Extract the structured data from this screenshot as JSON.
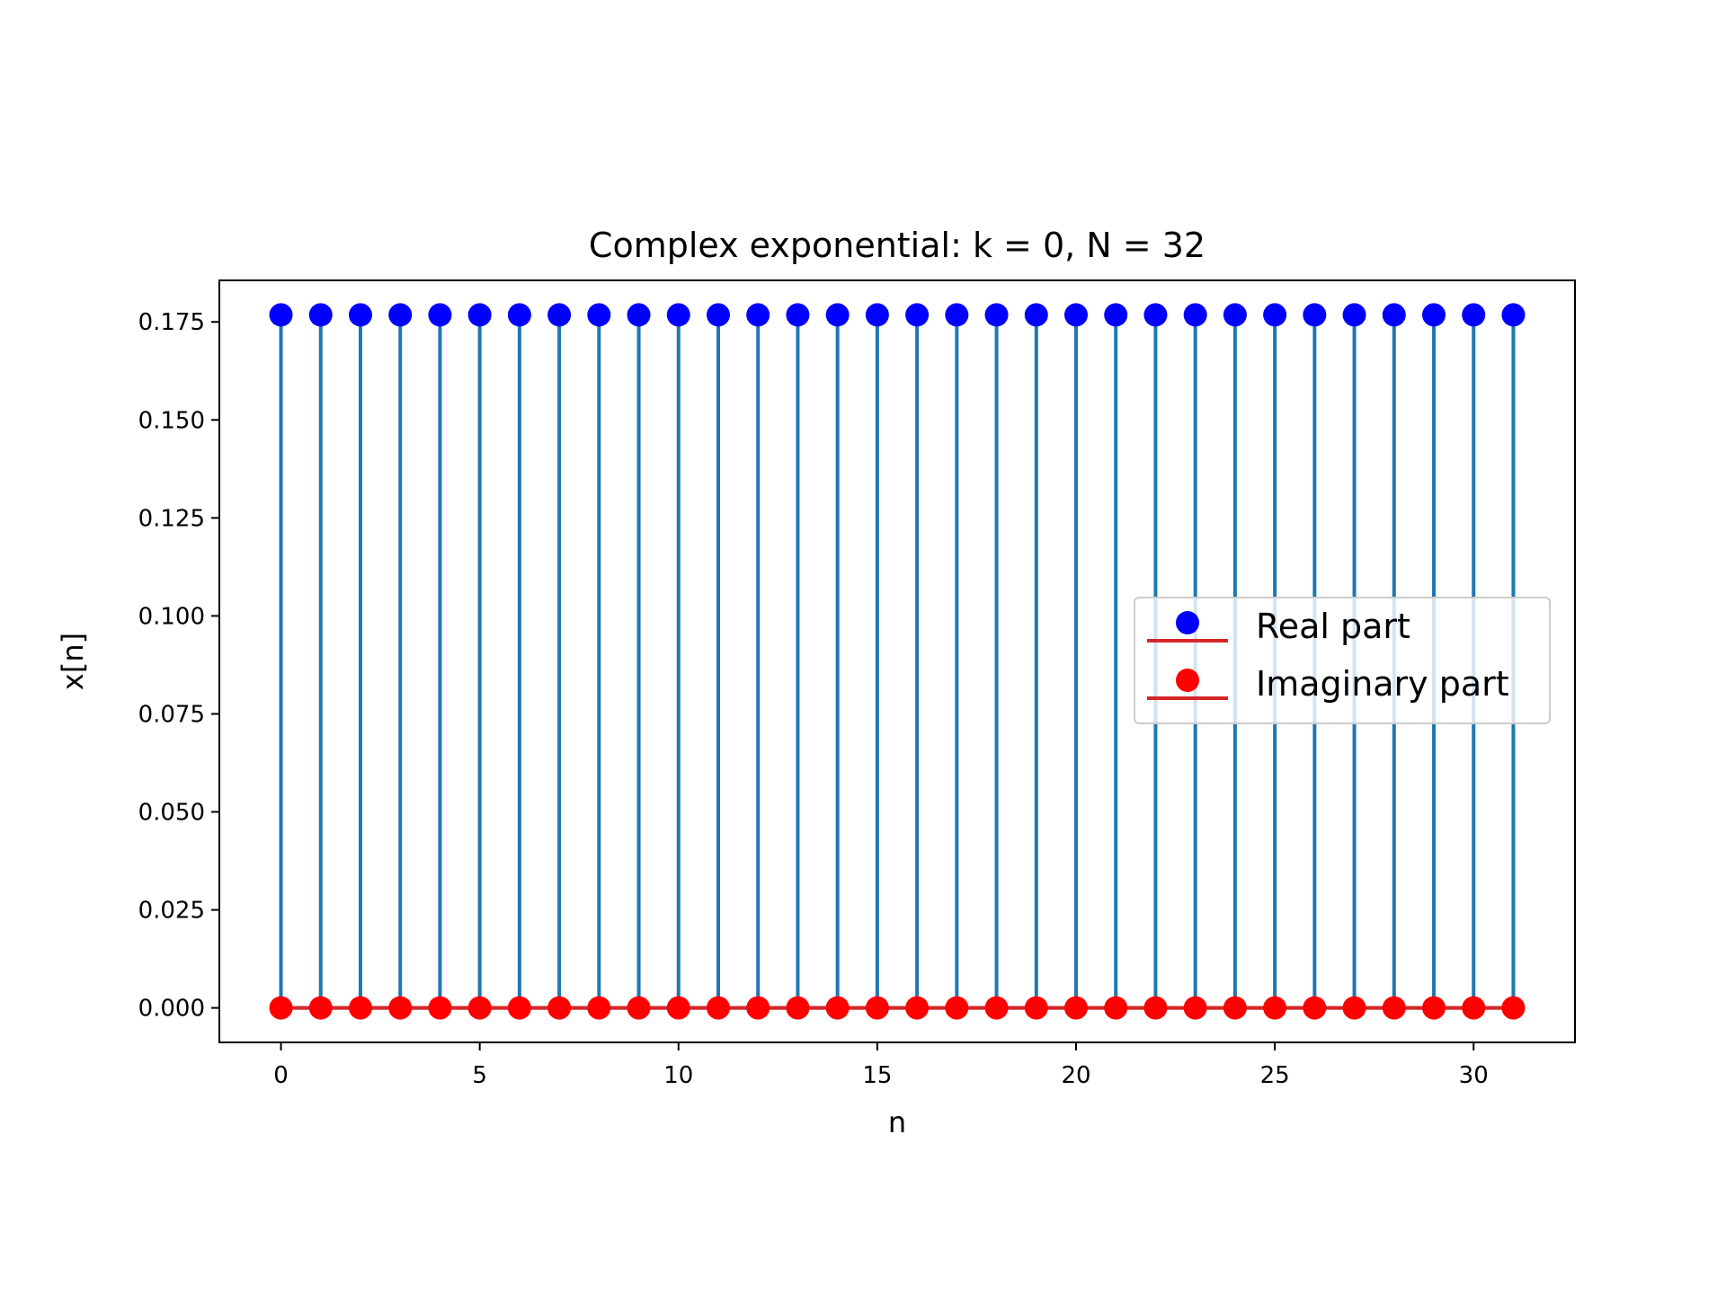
{
  "chart_data": {
    "type": "stem",
    "title": "Complex exponential: k = 0, N = 32",
    "xlabel": "n",
    "ylabel": "x[n]",
    "xlim": [
      -1.55,
      32.55
    ],
    "ylim": [
      -0.0088,
      0.1856
    ],
    "xticks": [
      0,
      5,
      10,
      15,
      20,
      25,
      30
    ],
    "xtick_labels": [
      "0",
      "5",
      "10",
      "15",
      "20",
      "25",
      "30"
    ],
    "yticks": [
      0.0,
      0.025,
      0.05,
      0.075,
      0.1,
      0.125,
      0.15,
      0.175
    ],
    "ytick_labels": [
      "0.000",
      "0.025",
      "0.050",
      "0.075",
      "0.100",
      "0.125",
      "0.150",
      "0.175"
    ],
    "x": [
      0,
      1,
      2,
      3,
      4,
      5,
      6,
      7,
      8,
      9,
      10,
      11,
      12,
      13,
      14,
      15,
      16,
      17,
      18,
      19,
      20,
      21,
      22,
      23,
      24,
      25,
      26,
      27,
      28,
      29,
      30,
      31
    ],
    "series": [
      {
        "name": "Real part",
        "marker_color": "#0000ff",
        "stem_color": "#1f77b4",
        "baseline_color": "#d62728",
        "values": [
          0.1768,
          0.1768,
          0.1768,
          0.1768,
          0.1768,
          0.1768,
          0.1768,
          0.1768,
          0.1768,
          0.1768,
          0.1768,
          0.1768,
          0.1768,
          0.1768,
          0.1768,
          0.1768,
          0.1768,
          0.1768,
          0.1768,
          0.1768,
          0.1768,
          0.1768,
          0.1768,
          0.1768,
          0.1768,
          0.1768,
          0.1768,
          0.1768,
          0.1768,
          0.1768,
          0.1768,
          0.1768
        ]
      },
      {
        "name": "Imaginary part",
        "marker_color": "#ff0000",
        "stem_color": "#1f77b4",
        "baseline_color": "#d62728",
        "values": [
          0,
          0,
          0,
          0,
          0,
          0,
          0,
          0,
          0,
          0,
          0,
          0,
          0,
          0,
          0,
          0,
          0,
          0,
          0,
          0,
          0,
          0,
          0,
          0,
          0,
          0,
          0,
          0,
          0,
          0,
          0,
          0
        ]
      }
    ],
    "legend_position": "center-right",
    "grid": false
  }
}
